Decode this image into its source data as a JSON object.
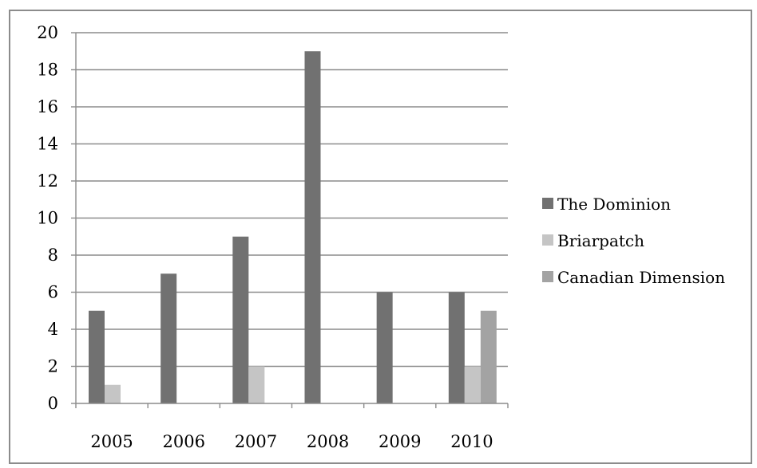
{
  "chart_data": {
    "type": "bar",
    "title": "",
    "xlabel": "",
    "ylabel": "",
    "categories": [
      "2005",
      "2006",
      "2007",
      "2008",
      "2009",
      "2010"
    ],
    "ylim": [
      0,
      20
    ],
    "yticks": [
      0,
      2,
      4,
      6,
      8,
      10,
      12,
      14,
      16,
      18,
      20
    ],
    "grid": true,
    "legend_position": "right",
    "series": [
      {
        "name": "The Dominion",
        "color": "#717171",
        "values": [
          5,
          7,
          9,
          19,
          6,
          6
        ]
      },
      {
        "name": "Briarpatch",
        "color": "#c5c5c5",
        "values": [
          1,
          0,
          2,
          0,
          0,
          2
        ]
      },
      {
        "name": "Canadian Dimension",
        "color": "#a3a3a3",
        "values": [
          0,
          0,
          0,
          0,
          0,
          5
        ]
      }
    ]
  }
}
